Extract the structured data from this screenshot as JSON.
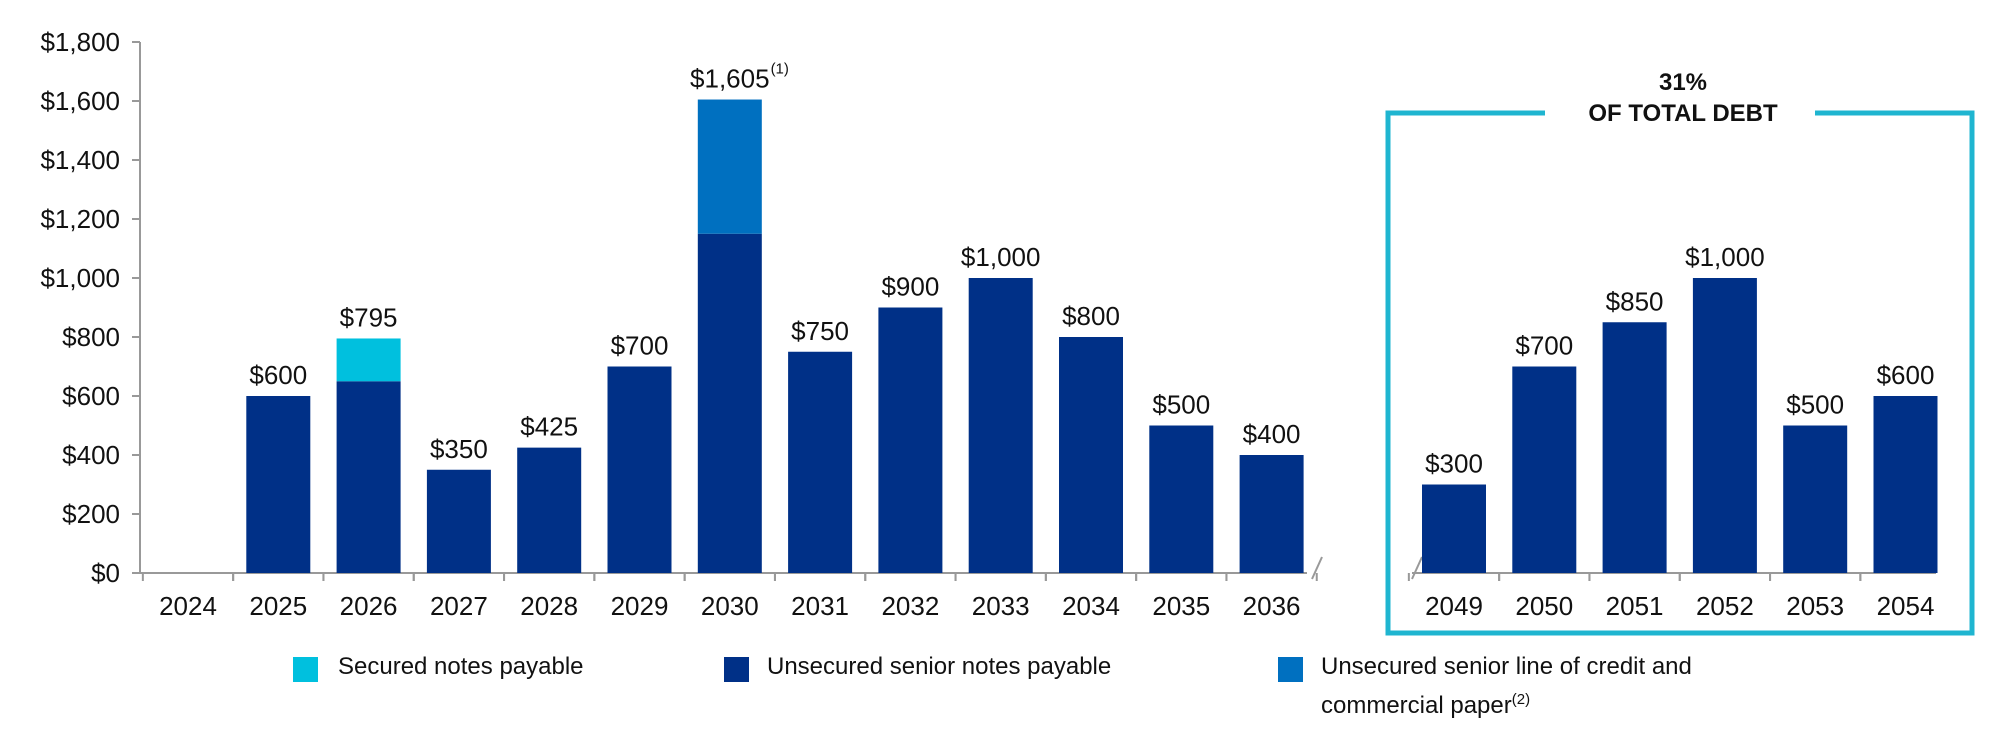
{
  "chart_data": {
    "type": "bar",
    "categories": [
      "2024",
      "2025",
      "2026",
      "2027",
      "2028",
      "2029",
      "2030",
      "2031",
      "2032",
      "2033",
      "2034",
      "2035",
      "2036",
      "2049",
      "2050",
      "2051",
      "2052",
      "2053",
      "2054"
    ],
    "series": [
      {
        "name": "Secured notes payable",
        "color": "#00c0de",
        "values": [
          null,
          null,
          145,
          null,
          null,
          null,
          null,
          null,
          null,
          null,
          null,
          null,
          null,
          null,
          null,
          null,
          null,
          null,
          null
        ]
      },
      {
        "name": "Unsecured senior notes payable",
        "color": "#003087",
        "values": [
          null,
          600,
          650,
          350,
          425,
          700,
          1150,
          750,
          900,
          1000,
          800,
          500,
          400,
          300,
          700,
          850,
          1000,
          500,
          600
        ]
      },
      {
        "name": "Unsecured senior line of credit and commercial paper",
        "note": "(2)",
        "color": "#0070c0",
        "values": [
          null,
          null,
          null,
          null,
          null,
          null,
          455,
          null,
          null,
          null,
          null,
          null,
          null,
          null,
          null,
          null,
          null,
          null,
          null
        ]
      }
    ],
    "totals": [
      null,
      600,
      795,
      350,
      425,
      700,
      1605,
      750,
      900,
      1000,
      800,
      500,
      400,
      300,
      700,
      850,
      1000,
      500,
      600
    ],
    "total_labels": [
      null,
      "$600",
      "$795",
      "$350",
      "$425",
      "$700",
      "$1,605",
      "$750",
      "$900",
      "$1,000",
      "$800",
      "$500",
      "$400",
      "$300",
      "$700",
      "$850",
      "$1,000",
      "$500",
      "$600"
    ],
    "total_notes": {
      "6": "(1)"
    },
    "ylim": [
      0,
      1800
    ],
    "yticks": [
      {
        "value": 0,
        "label": "$0"
      },
      {
        "value": 200,
        "label": "$200"
      },
      {
        "value": 400,
        "label": "$400"
      },
      {
        "value": 600,
        "label": "$600"
      },
      {
        "value": 800,
        "label": "$800"
      },
      {
        "value": 1000,
        "label": "$1,000"
      },
      {
        "value": 1200,
        "label": "$1,200"
      },
      {
        "value": 1400,
        "label": "$1,400"
      },
      {
        "value": 1600,
        "label": "$1,600"
      },
      {
        "value": 1800,
        "label": "$1,800"
      }
    ],
    "box_annotation": {
      "lines": [
        "31%",
        "OF TOTAL DEBT"
      ],
      "color": "#1fb5d0"
    },
    "grid": false
  }
}
